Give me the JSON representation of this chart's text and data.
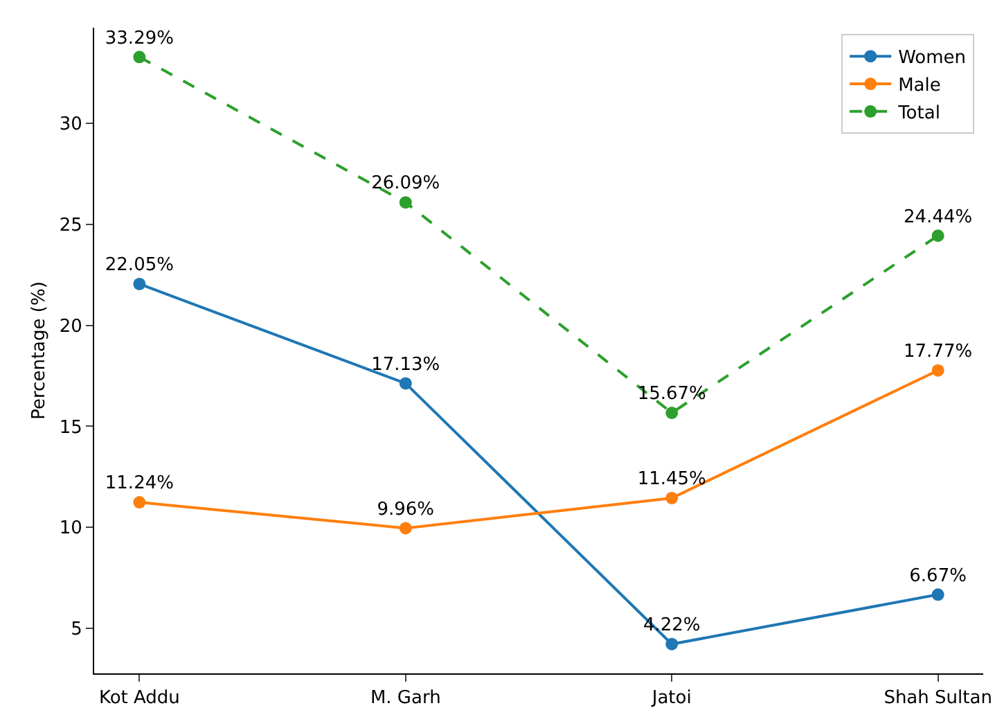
{
  "chart_data": {
    "type": "line",
    "ylabel": "Percentage (%)",
    "categories": [
      "Kot Addu",
      "M. Garh",
      "Jatoi",
      "Shah Sultan"
    ],
    "series": [
      {
        "name": "Women",
        "color": "#1f77b4",
        "values": [
          22.05,
          17.13,
          4.22,
          6.67
        ],
        "value_labels": [
          "22.05%",
          "17.13%",
          "4.22%",
          "6.67%"
        ]
      },
      {
        "name": "Male",
        "color": "#ff7f0e",
        "values": [
          11.24,
          9.96,
          11.45,
          17.77
        ],
        "value_labels": [
          "11.24%",
          "9.96%",
          "11.45%",
          "17.77%"
        ]
      },
      {
        "name": "Total",
        "color": "#2ca02c",
        "line_style": "dashed",
        "values": [
          33.29,
          26.09,
          15.67,
          24.44
        ],
        "value_labels": [
          "33.29%",
          "26.09%",
          "15.67%",
          "24.44%"
        ]
      }
    ],
    "ylim": [
      2.77,
      34.74
    ],
    "yticks": [
      5,
      10,
      15,
      20,
      25,
      30
    ],
    "grid": false,
    "legend": "top right",
    "marker": "circle",
    "line_style": "solid"
  }
}
